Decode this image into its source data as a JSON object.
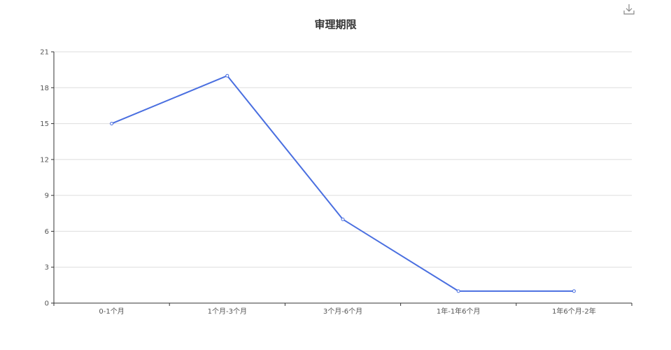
{
  "chart_data": {
    "type": "line",
    "title": "审理期限",
    "categories": [
      "0-1个月",
      "1个月-3个月",
      "3个月-6个月",
      "1年-1年6个月",
      "1年6个月-2年"
    ],
    "values": [
      15,
      19,
      7,
      1,
      1
    ],
    "ylim": [
      0,
      21
    ],
    "yticks": [
      0,
      3,
      6,
      9,
      12,
      15,
      18,
      21
    ],
    "xlabel": "",
    "ylabel": "",
    "grid": true,
    "colors": {
      "line": "#4a6fe0",
      "grid": "#dedede",
      "axis": "#333333"
    }
  },
  "toolbox": {
    "download_icon": "download-icon"
  }
}
